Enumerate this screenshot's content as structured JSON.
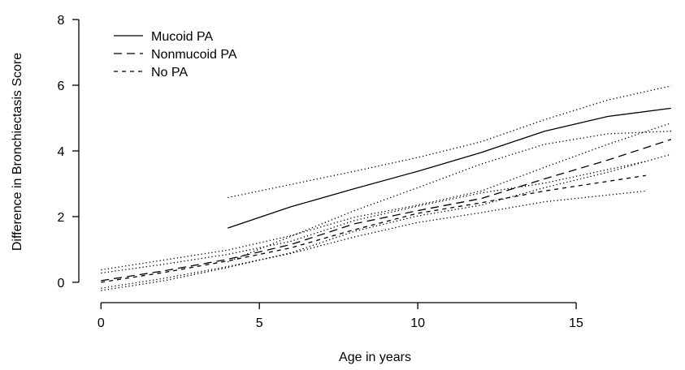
{
  "chart_data": {
    "type": "line",
    "title": "",
    "xlabel": "Age in years",
    "ylabel": "Difference in Bronchiectasis Score",
    "xlim": [
      -0.7,
      18.0
    ],
    "ylim": [
      -0.25,
      8.2
    ],
    "xticks": [
      0,
      5,
      10,
      15
    ],
    "yticks": [
      0,
      2,
      4,
      6,
      8
    ],
    "x_tick_labels": [
      "0",
      "5",
      "10",
      "15"
    ],
    "y_tick_labels": [
      "0",
      "2",
      "4",
      "6",
      "8"
    ],
    "legend_position": "top-left",
    "frame": "left-bottom-axes",
    "series": [
      {
        "name": "Mucoid PA",
        "style": "solid",
        "x": [
          4,
          6,
          8,
          10,
          12,
          14,
          16,
          18
        ],
        "y": [
          1.65,
          2.3,
          2.85,
          3.38,
          3.95,
          4.6,
          5.05,
          5.3
        ]
      },
      {
        "name": "Nonmucoid PA",
        "style": "dashed",
        "x": [
          0,
          2,
          4,
          6,
          8,
          10,
          12,
          14,
          16,
          18
        ],
        "y": [
          0.05,
          0.35,
          0.7,
          1.15,
          1.78,
          2.18,
          2.55,
          3.15,
          3.72,
          4.35
        ]
      },
      {
        "name": "No PA",
        "style": "short-dashed",
        "x": [
          0,
          2,
          4,
          6,
          8,
          10,
          12,
          14,
          17.2
        ],
        "y": [
          0.0,
          0.3,
          0.65,
          1.05,
          1.6,
          2.1,
          2.42,
          2.78,
          3.25
        ]
      },
      {
        "name": "",
        "style": "dotted",
        "band_for": "Mucoid PA",
        "x": [
          4,
          6,
          8,
          10,
          12,
          14,
          16,
          18
        ],
        "y": [
          2.58,
          2.98,
          3.38,
          3.8,
          4.28,
          4.95,
          5.55,
          5.98
        ]
      },
      {
        "name": "",
        "style": "dotted",
        "band_for": "Mucoid PA",
        "x": [
          4,
          6,
          8,
          10,
          12,
          14,
          16,
          18
        ],
        "y": [
          0.62,
          1.4,
          2.18,
          2.88,
          3.6,
          4.2,
          4.52,
          4.6
        ]
      },
      {
        "name": "",
        "style": "dotted",
        "band_for": "Nonmucoid PA",
        "x": [
          0,
          2,
          4,
          6,
          8,
          10,
          12,
          14,
          16,
          18
        ],
        "y": [
          0.38,
          0.68,
          0.98,
          1.42,
          1.98,
          2.35,
          2.78,
          3.5,
          4.2,
          4.85
        ]
      },
      {
        "name": "",
        "style": "dotted",
        "band_for": "Nonmucoid PA",
        "x": [
          0,
          2,
          4,
          6,
          8,
          10,
          12,
          14,
          16,
          18
        ],
        "y": [
          -0.25,
          0.05,
          0.45,
          0.9,
          1.55,
          2.02,
          2.35,
          2.88,
          3.35,
          3.9
        ]
      },
      {
        "name": "",
        "style": "dotted",
        "band_for": "No PA",
        "x": [
          0,
          2,
          4,
          6,
          8,
          10,
          12,
          14,
          17.2
        ],
        "y": [
          0.28,
          0.55,
          0.85,
          1.25,
          1.88,
          2.32,
          2.72,
          3.02,
          3.68
        ]
      },
      {
        "name": "",
        "style": "dotted",
        "band_for": "No PA",
        "x": [
          0,
          2,
          4,
          6,
          8,
          10,
          12,
          14,
          17.2
        ],
        "y": [
          -0.18,
          0.12,
          0.48,
          0.88,
          1.38,
          1.82,
          2.12,
          2.45,
          2.78
        ]
      }
    ]
  }
}
